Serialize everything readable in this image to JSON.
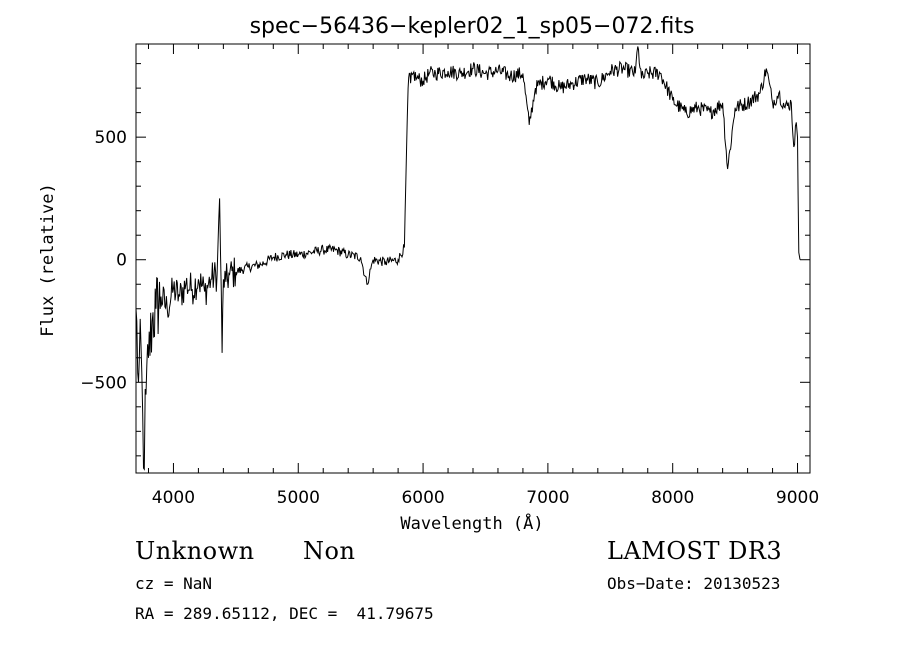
{
  "chart_data": {
    "type": "line",
    "title": "spec−56436−kepler02_1_sp05−072.fits",
    "xlabel": "Wavelength (Å)",
    "ylabel": "Flux (relative)",
    "xlim": [
      3700,
      9100
    ],
    "ylim": [
      -870,
      880
    ],
    "xticks": [
      4000,
      5000,
      6000,
      7000,
      8000,
      9000
    ],
    "xtick_labels": [
      "4000",
      "5000",
      "6000",
      "7000",
      "8000",
      "9000"
    ],
    "yticks": [
      -500,
      0,
      500
    ],
    "ytick_labels": [
      "−500",
      "0",
      "500"
    ],
    "grid": false,
    "series": [
      {
        "x": [
          3700,
          3720,
          3740,
          3760,
          3780,
          3800,
          3830,
          3860,
          3900,
          3950,
          4000,
          4050,
          4100,
          4150,
          4200,
          4250,
          4300,
          4350,
          4370,
          4390,
          4400,
          4420,
          4450,
          4500,
          4600,
          4700,
          4800,
          4900,
          5000,
          5100,
          5200,
          5300,
          5400,
          5500,
          5550,
          5600,
          5700,
          5800,
          5850,
          5880,
          5890,
          5900,
          5920,
          5950,
          6000,
          6050,
          6100,
          6200,
          6300,
          6400,
          6500,
          6600,
          6700,
          6800,
          6850,
          6900,
          7000,
          7100,
          7200,
          7300,
          7400,
          7500,
          7600,
          7700,
          7720,
          7750,
          7800,
          7900,
          8000,
          8100,
          8200,
          8300,
          8400,
          8440,
          8500,
          8600,
          8700,
          8750,
          8800,
          8850,
          8900,
          8950,
          8970,
          8990,
          9000,
          9010,
          9020
        ],
        "y": [
          -200,
          -500,
          -350,
          -850,
          -550,
          -400,
          -250,
          -200,
          -150,
          -200,
          -120,
          -150,
          -100,
          -120,
          -80,
          -130,
          -80,
          -60,
          250,
          -380,
          -80,
          -90,
          -60,
          -50,
          -30,
          -20,
          10,
          20,
          20,
          30,
          40,
          40,
          20,
          10,
          -100,
          0,
          -10,
          0,
          50,
          700,
          760,
          720,
          760,
          740,
          730,
          760,
          760,
          770,
          760,
          780,
          760,
          770,
          750,
          760,
          550,
          700,
          740,
          700,
          720,
          740,
          720,
          770,
          780,
          760,
          870,
          740,
          760,
          760,
          650,
          600,
          620,
          600,
          640,
          370,
          620,
          640,
          680,
          780,
          640,
          680,
          620,
          640,
          460,
          560,
          500,
          30,
          0
        ]
      }
    ]
  },
  "footer": {
    "object_name": "Unknown",
    "object_class": "Non",
    "survey": "LAMOST DR3",
    "cz": "cz = NaN",
    "obs_date": "Obs−Date: 20130523",
    "coords": "RA = 289.65112, DEC =  41.79675"
  }
}
